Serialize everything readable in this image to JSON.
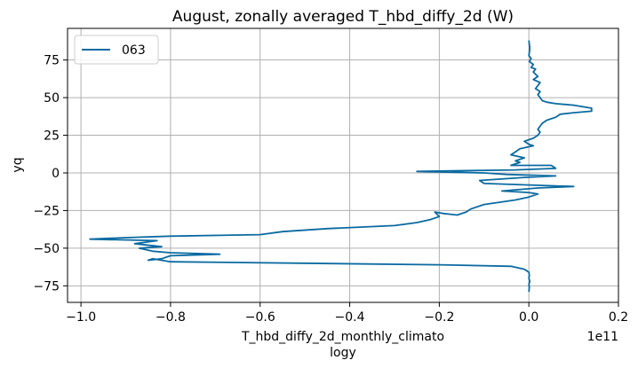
{
  "chart_data": {
    "type": "line",
    "title": "August, zonally averaged T_hbd_diffy_2d (W)",
    "xlabel": "T_hbd_diffy_2d_monthly_climato",
    "xlabel_line2": "logy",
    "ylabel": "yq",
    "offset_label": "1e11",
    "x_scale_factor": 100000000000.0,
    "xlim": [
      -1.03,
      0.2
    ],
    "ylim": [
      -86,
      96
    ],
    "xticks": [
      -1.0,
      -0.8,
      -0.6,
      -0.4,
      -0.2,
      0.0,
      0.2
    ],
    "xtick_labels": [
      "−1.0",
      "−0.8",
      "−0.6",
      "−0.4",
      "−0.2",
      "0.0",
      "0.2"
    ],
    "yticks": [
      75,
      50,
      25,
      0,
      -25,
      -50,
      -75
    ],
    "ytick_labels": [
      "75",
      "50",
      "25",
      "0",
      "−25",
      "−50",
      "−75"
    ],
    "grid": true,
    "legend_position": "top-left",
    "series": [
      {
        "name": "063",
        "color": "#0a6aa1",
        "x": [
          0.0,
          0.002,
          0.001,
          0.0,
          0.005,
          0.001,
          0.01,
          0.005,
          0.015,
          0.01,
          0.02,
          0.01,
          0.025,
          0.02,
          0.015,
          0.025,
          0.02,
          0.025,
          0.03,
          0.04,
          0.06,
          0.1,
          0.14,
          0.14,
          0.1,
          0.07,
          0.06,
          0.04,
          0.03,
          0.025,
          0.02,
          0.025,
          0.02,
          0.01,
          -0.01,
          0.0,
          0.01,
          -0.02,
          -0.03,
          -0.04,
          -0.01,
          -0.03,
          -0.02,
          -0.04,
          0.05,
          0.06,
          -0.03,
          -0.25,
          -0.1,
          -0.05,
          0.06,
          -0.01,
          -0.11,
          -0.1,
          0.1,
          0.02,
          -0.06,
          0.0,
          0.02,
          0.0,
          -0.03,
          -0.1,
          -0.13,
          -0.14,
          -0.16,
          -0.19,
          -0.21,
          -0.2,
          -0.22,
          -0.25,
          -0.3,
          -0.45,
          -0.55,
          -0.6,
          -0.8,
          -0.9,
          -0.98,
          -0.83,
          -0.88,
          -0.82,
          -0.87,
          -0.84,
          -0.8,
          -0.69,
          -0.8,
          -0.82,
          -0.85,
          -0.84,
          -0.82,
          -0.8,
          -0.2,
          -0.04,
          -0.01,
          0.0,
          0.001,
          0.0,
          0.002,
          0.0,
          0.001,
          0.0
        ],
        "y": [
          88,
          83,
          80,
          78,
          76,
          74,
          72,
          70,
          69,
          67,
          64,
          62,
          60,
          58,
          56,
          54,
          52,
          50,
          48,
          47,
          46,
          45,
          43,
          41,
          40,
          39,
          37,
          35,
          33,
          31,
          29,
          27,
          25,
          23,
          21,
          19,
          18,
          16,
          14,
          12,
          10,
          8,
          7,
          5,
          5,
          3,
          2,
          1,
          0,
          -1,
          -2,
          -3,
          -5,
          -7,
          -9,
          -10,
          -12,
          -13,
          -14,
          -16,
          -18,
          -21,
          -24,
          -26,
          -28,
          -27,
          -26,
          -29,
          -31,
          -33,
          -35,
          -37,
          -39,
          -41,
          -42,
          -43,
          -44,
          -45,
          -47,
          -49,
          -50,
          -52,
          -53,
          -54,
          -55,
          -57,
          -58,
          -57,
          -58,
          -59,
          -61,
          -62,
          -64,
          -66,
          -68,
          -70,
          -72,
          -74,
          -76,
          -79
        ]
      }
    ]
  }
}
